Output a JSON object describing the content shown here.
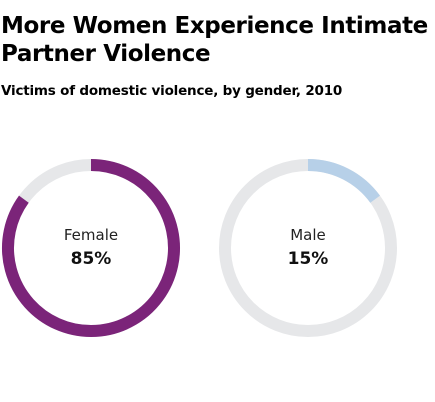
{
  "title": "More Women Experience Intimate Partner Violence",
  "subtitle": "Victims of domestic violence, by gender, 2010",
  "colors": {
    "track": "#e6e7e9",
    "female": "#7b2479",
    "male": "#b7d0e8"
  },
  "chart_data": {
    "type": "pie",
    "variant": "donut-pair",
    "title": "More Women Experience Intimate Partner Violence",
    "subtitle": "Victims of domestic violence, by gender, 2010",
    "slices": [
      {
        "label": "Female",
        "value": 85,
        "value_label": "85%",
        "color": "#7b2479"
      },
      {
        "label": "Male",
        "value": 15,
        "value_label": "15%",
        "color": "#b7d0e8"
      }
    ]
  }
}
